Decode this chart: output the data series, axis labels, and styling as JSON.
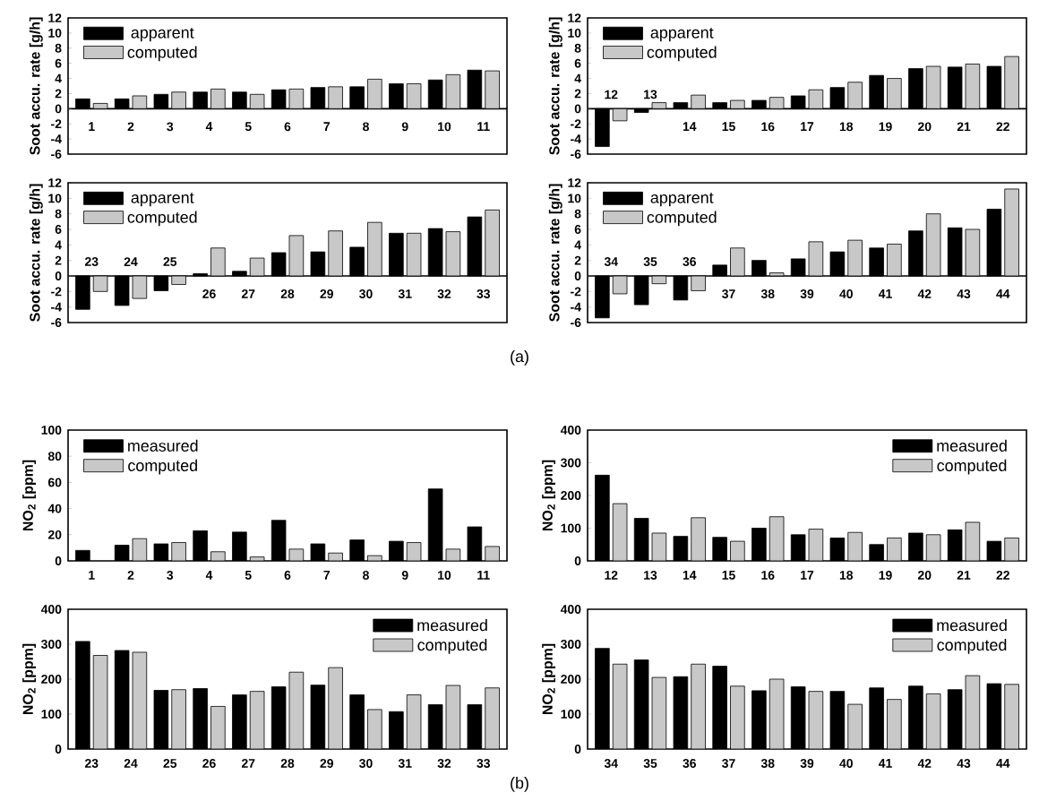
{
  "chart_data": [
    {
      "type": "bar",
      "ylabel": "Soot accu. rate [g/h]",
      "categories": [
        "1",
        "2",
        "3",
        "4",
        "5",
        "6",
        "7",
        "8",
        "9",
        "10",
        "11"
      ],
      "ylim": [
        -6,
        12
      ],
      "yticks": [
        -6,
        -4,
        -2,
        0,
        2,
        4,
        6,
        8,
        10,
        12
      ],
      "legend": "top left",
      "series": [
        {
          "name": "apparent",
          "color": "#000000",
          "values": [
            1.3,
            1.3,
            1.9,
            2.2,
            2.2,
            2.5,
            2.8,
            2.9,
            3.3,
            3.8,
            5.1
          ]
        },
        {
          "name": "computed",
          "color": "#c8c8c8",
          "values": [
            0.7,
            1.7,
            2.2,
            2.6,
            1.9,
            2.6,
            2.9,
            3.9,
            3.3,
            4.5,
            5.0
          ]
        }
      ]
    },
    {
      "type": "bar",
      "ylabel": "Soot accu. rate [g/h]",
      "categories": [
        "12",
        "13",
        "14",
        "15",
        "16",
        "17",
        "18",
        "19",
        "20",
        "21",
        "22"
      ],
      "ylim": [
        -6,
        12
      ],
      "yticks": [
        -6,
        -4,
        -2,
        0,
        2,
        4,
        6,
        8,
        10,
        12
      ],
      "legend": "top left",
      "series": [
        {
          "name": "apparent",
          "color": "#000000",
          "values": [
            -5.0,
            -0.5,
            0.8,
            0.8,
            1.1,
            1.7,
            2.8,
            4.4,
            5.3,
            5.5,
            5.6
          ]
        },
        {
          "name": "computed",
          "color": "#c8c8c8",
          "values": [
            -1.6,
            0.8,
            1.8,
            1.1,
            1.5,
            2.5,
            3.5,
            4.0,
            5.6,
            5.9,
            6.9
          ]
        }
      ]
    },
    {
      "type": "bar",
      "ylabel": "Soot accu. rate [g/h]",
      "categories": [
        "23",
        "24",
        "25",
        "26",
        "27",
        "28",
        "29",
        "30",
        "31",
        "32",
        "33"
      ],
      "ylim": [
        -6,
        12
      ],
      "yticks": [
        -6,
        -4,
        -2,
        0,
        2,
        4,
        6,
        8,
        10,
        12
      ],
      "legend": "top left",
      "series": [
        {
          "name": "apparent",
          "color": "#000000",
          "values": [
            -4.3,
            -3.8,
            -1.9,
            0.3,
            0.6,
            3.0,
            3.1,
            3.7,
            5.5,
            6.1,
            7.6
          ]
        },
        {
          "name": "computed",
          "color": "#c8c8c8",
          "values": [
            -2.0,
            -2.9,
            -1.1,
            3.6,
            2.3,
            5.2,
            5.8,
            6.9,
            5.5,
            5.7,
            8.5
          ]
        }
      ]
    },
    {
      "type": "bar",
      "ylabel": "Soot accu. rate [g/h]",
      "categories": [
        "34",
        "35",
        "36",
        "37",
        "38",
        "39",
        "40",
        "41",
        "42",
        "43",
        "44"
      ],
      "ylim": [
        -6,
        12
      ],
      "yticks": [
        -6,
        -4,
        -2,
        0,
        2,
        4,
        6,
        8,
        10,
        12
      ],
      "legend": "top left",
      "annotations": [
        "(a)"
      ],
      "series": [
        {
          "name": "apparent",
          "color": "#000000",
          "values": [
            -5.4,
            -3.7,
            -3.1,
            1.4,
            2.0,
            2.2,
            3.1,
            3.6,
            5.8,
            6.2,
            8.6
          ]
        },
        {
          "name": "computed",
          "color": "#c8c8c8",
          "values": [
            -2.3,
            -1.0,
            -1.9,
            3.6,
            0.4,
            4.4,
            4.6,
            4.1,
            8.0,
            6.0,
            11.2
          ]
        }
      ]
    },
    {
      "type": "bar",
      "ylabel": "NO$_{2}$ [ppm]",
      "categories": [
        "1",
        "2",
        "3",
        "4",
        "5",
        "6",
        "7",
        "8",
        "9",
        "10",
        "11"
      ],
      "ylim": [
        0,
        100
      ],
      "yticks": [
        0,
        20,
        40,
        60,
        80,
        100
      ],
      "legend": "top left",
      "series": [
        {
          "name": "measured",
          "color": "#000000",
          "values": [
            8,
            12,
            13,
            23,
            22,
            31,
            13,
            16,
            15,
            55,
            26
          ]
        },
        {
          "name": "computed",
          "color": "#c8c8c8",
          "values": [
            null,
            17,
            14,
            7,
            3,
            9,
            6,
            4,
            14,
            9,
            11
          ]
        }
      ]
    },
    {
      "type": "bar",
      "ylabel": "NO$_{2}$ [ppm]",
      "categories": [
        "12",
        "13",
        "14",
        "15",
        "16",
        "17",
        "18",
        "19",
        "20",
        "21",
        "22"
      ],
      "ylim": [
        0,
        400
      ],
      "yticks": [
        0,
        100,
        200,
        300,
        400
      ],
      "legend": "top right",
      "series": [
        {
          "name": "measured",
          "color": "#000000",
          "values": [
            262,
            130,
            75,
            72,
            100,
            80,
            70,
            50,
            85,
            95,
            60
          ]
        },
        {
          "name": "computed",
          "color": "#c8c8c8",
          "values": [
            175,
            85,
            132,
            60,
            135,
            97,
            87,
            70,
            80,
            118,
            70
          ]
        }
      ]
    },
    {
      "type": "bar",
      "ylabel": "NO$_{2}$ [ppm]",
      "categories": [
        "23",
        "24",
        "25",
        "26",
        "27",
        "28",
        "29",
        "30",
        "31",
        "32",
        "33"
      ],
      "ylim": [
        0,
        400
      ],
      "yticks": [
        0,
        100,
        200,
        300,
        400
      ],
      "legend": "top right",
      "series": [
        {
          "name": "measured",
          "color": "#000000",
          "values": [
            308,
            282,
            168,
            173,
            155,
            178,
            183,
            155,
            107,
            127,
            127
          ]
        },
        {
          "name": "computed",
          "color": "#c8c8c8",
          "values": [
            268,
            277,
            170,
            122,
            165,
            220,
            233,
            113,
            155,
            182,
            175
          ]
        }
      ]
    },
    {
      "type": "bar",
      "ylabel": "NO$_{2}$ [ppm]",
      "categories": [
        "34",
        "35",
        "36",
        "37",
        "38",
        "39",
        "40",
        "41",
        "42",
        "43",
        "44"
      ],
      "ylim": [
        0,
        400
      ],
      "yticks": [
        0,
        100,
        200,
        300,
        400
      ],
      "legend": "top right",
      "annotations": [
        "(b)"
      ],
      "series": [
        {
          "name": "measured",
          "color": "#000000",
          "values": [
            288,
            255,
            207,
            237,
            167,
            178,
            165,
            175,
            180,
            170,
            187
          ]
        },
        {
          "name": "computed",
          "color": "#c8c8c8",
          "values": [
            243,
            205,
            243,
            180,
            200,
            165,
            128,
            142,
            158,
            210,
            185
          ]
        }
      ]
    }
  ]
}
